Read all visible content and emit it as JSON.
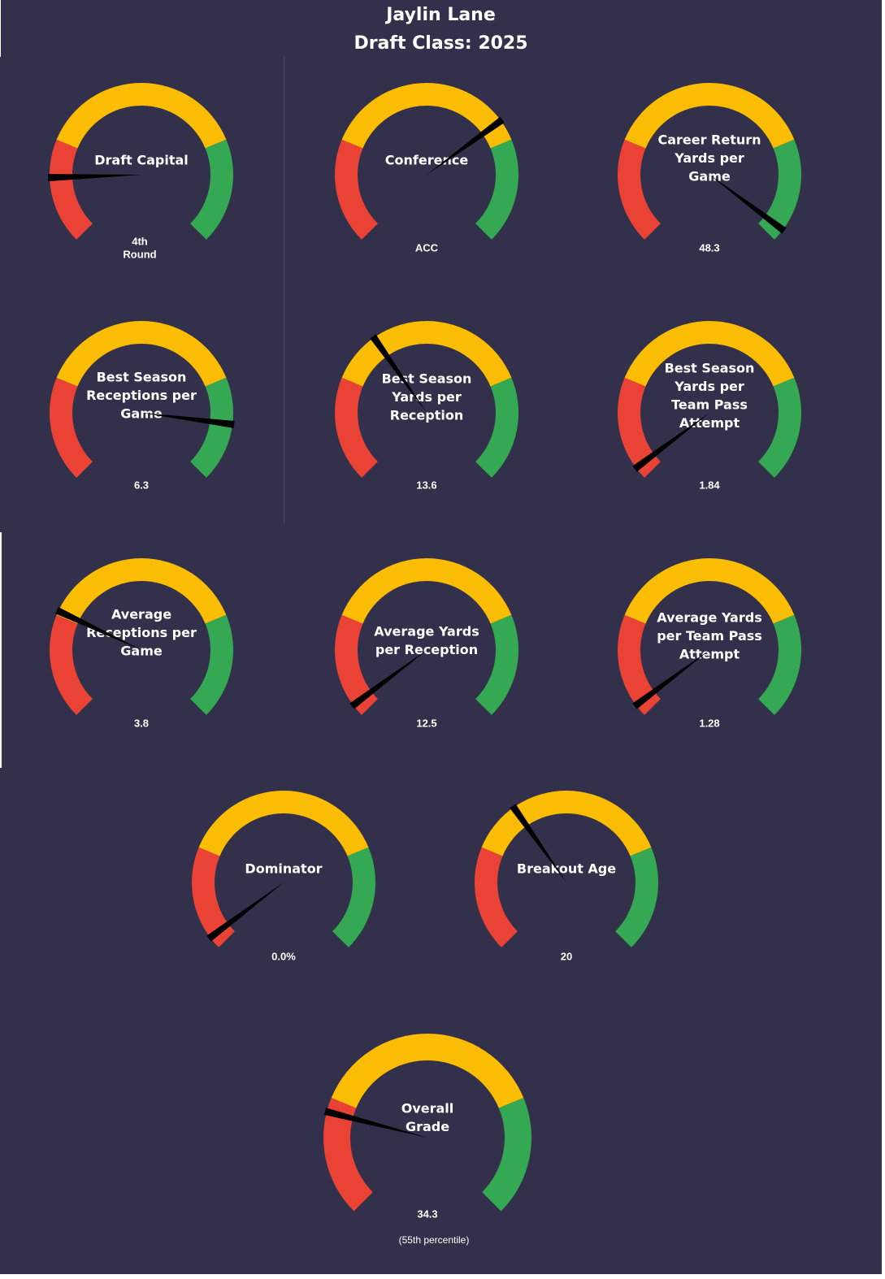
{
  "header": {
    "player_name": "Jaylin Lane",
    "draft_class": "Draft Class: 2025"
  },
  "colors": {
    "background": "#32304b",
    "low": "#ea4335",
    "mid": "#fbbc04",
    "high": "#34a853",
    "needle": "#000000",
    "text": "#ffffff"
  },
  "chart_data": {
    "type": "gauge",
    "scale": [
      0,
      100
    ],
    "zones": [
      {
        "name": "low",
        "color": "#ea4335",
        "from": 0,
        "to": 25
      },
      {
        "name": "mid",
        "color": "#fbbc04",
        "from": 25,
        "to": 75
      },
      {
        "name": "high",
        "color": "#34a853",
        "from": 75,
        "to": 100
      }
    ],
    "gauges": [
      {
        "id": "draft-capital",
        "label": [
          "Draft Capital"
        ],
        "value_text": [
          "4th",
          "Round"
        ],
        "score": 16
      },
      {
        "id": "conference",
        "label": [
          "Conference"
        ],
        "value_text": [
          "ACC"
        ],
        "score": 70
      },
      {
        "id": "career-return-yards",
        "label": [
          "Career Return",
          "Yards per",
          "Game"
        ],
        "value_text": [
          "48.3"
        ],
        "score": 97
      },
      {
        "id": "best-season-receptions",
        "label": [
          "Best Season",
          "Receptions per",
          "Game"
        ],
        "value_text": [
          "6.3"
        ],
        "score": 86
      },
      {
        "id": "best-season-ypr",
        "label": [
          "Best Season",
          "Yards per",
          "Reception"
        ],
        "value_text": [
          "13.6"
        ],
        "score": 37
      },
      {
        "id": "best-season-yptpa",
        "label": [
          "Best Season",
          "Yards per",
          "Team Pass",
          "Attempt"
        ],
        "value_text": [
          "1.84"
        ],
        "score": 3
      },
      {
        "id": "average-receptions",
        "label": [
          "Average",
          "Receptions per",
          "Game"
        ],
        "value_text": [
          "3.8"
        ],
        "score": 26
      },
      {
        "id": "average-ypr",
        "label": [
          "Average Yards",
          "per Reception"
        ],
        "value_text": [
          "12.5"
        ],
        "score": 3
      },
      {
        "id": "average-yptpa",
        "label": [
          "Average Yards",
          "per Team Pass",
          "Attempt"
        ],
        "value_text": [
          "1.28"
        ],
        "score": 3
      },
      {
        "id": "dominator",
        "label": [
          "Dominator"
        ],
        "value_text": [
          "0.0%"
        ],
        "score": 3
      },
      {
        "id": "breakout-age",
        "label": [
          "Breakout Age"
        ],
        "value_text": [
          "20"
        ],
        "score": 37
      },
      {
        "id": "overall-grade",
        "label": [
          "Overall",
          "Grade"
        ],
        "value_text": [
          "34.3"
        ],
        "note": "(55th  percentile)",
        "score": 22
      }
    ]
  }
}
